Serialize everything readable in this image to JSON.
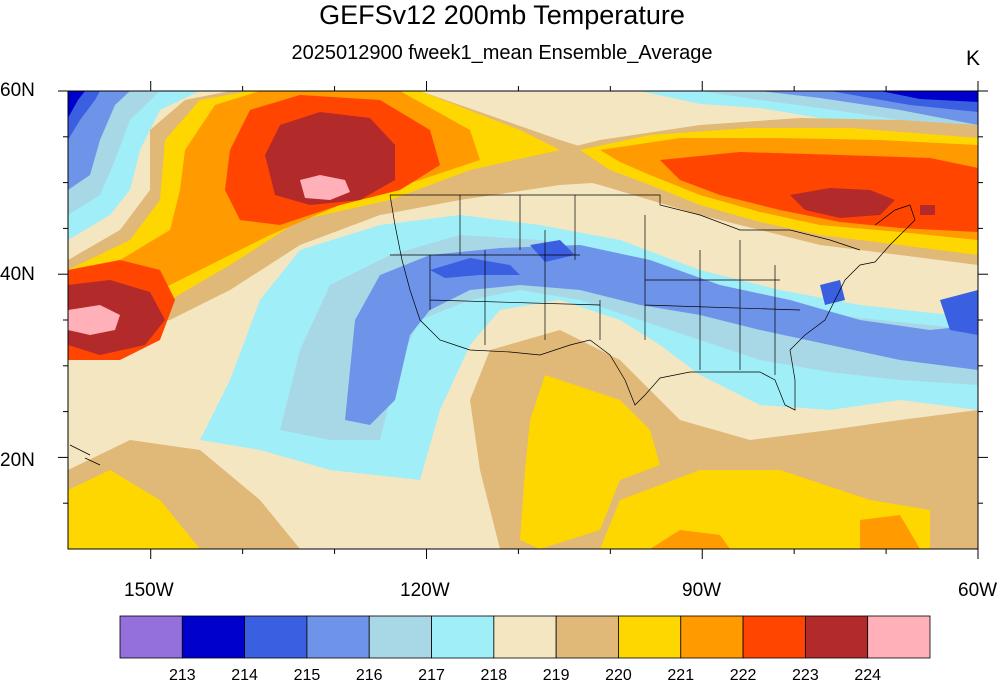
{
  "title": "GEFSv12 200mb Temperature",
  "subtitle": "2025012900 fweek1_mean Ensemble_Average",
  "units": "K",
  "lat_labels": [
    "60N",
    "40N",
    "20N"
  ],
  "lon_labels": [
    "150W",
    "120W",
    "90W",
    "60W"
  ],
  "colorbar": {
    "colors": [
      "#9370db",
      "#0000cd",
      "#3a5fe0",
      "#6e94ea",
      "#a8d8e6",
      "#a0eef8",
      "#f5e6c2",
      "#e0b878",
      "#ffd700",
      "#ff9a00",
      "#ff4500",
      "#b22a2a",
      "#ffb0b8"
    ],
    "labels": [
      "213",
      "214",
      "215",
      "216",
      "217",
      "218",
      "219",
      "220",
      "221",
      "222",
      "223",
      "224"
    ]
  },
  "map": {
    "lat_range": [
      10,
      60
    ],
    "lon_range": [
      -159,
      -60
    ],
    "field": "200mb Temperature",
    "features": [
      {
        "name": "warm-pool-northeast-pacific",
        "lon": -135,
        "lat": 50,
        "value_max": 224.5
      },
      {
        "name": "warm-pool-central-pacific",
        "lon": -155,
        "lat": 36,
        "value_max": 224.5
      },
      {
        "name": "warm-band-northeast",
        "lon": -75,
        "lat": 48,
        "value_max": 223.5
      },
      {
        "name": "cold-band-central-us",
        "lon": -105,
        "lat": 42,
        "value_min": 214.5
      },
      {
        "name": "cold-corner-northwest",
        "lon": -158,
        "lat": 59,
        "value_min": 213.5
      },
      {
        "name": "cold-corner-northeast",
        "lon": -65,
        "lat": 59,
        "value_min": 213.5
      },
      {
        "name": "warm-patch-mexico",
        "lon": -102,
        "lat": 24,
        "value_max": 221.5
      }
    ]
  }
}
